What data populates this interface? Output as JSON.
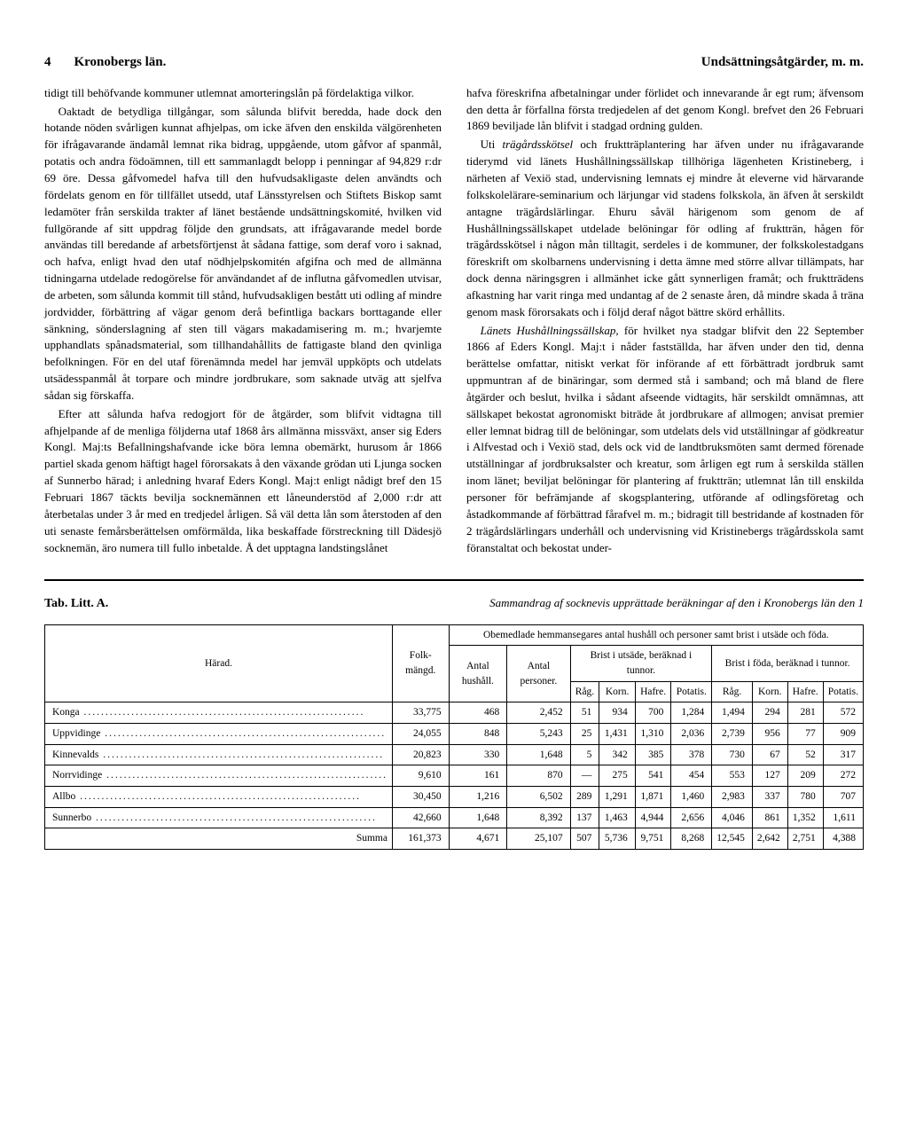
{
  "header": {
    "page_number": "4",
    "left_title": "Kronobergs län.",
    "right_title": "Undsättningsåtgärder, m. m."
  },
  "body": {
    "left_column": {
      "p1": "tidigt till behöfvande kommuner utlemnat amorteringslån på fördelaktiga vilkor.",
      "p2": "Oaktadt de betydliga tillgångar, som sålunda blifvit beredda, hade dock den hotande nöden svårligen kunnat afhjelpas, om icke äfven den enskilda välgörenheten för ifrågavarande ändamål lemnat rika bidrag, uppgående, utom gåfvor af spanmål, potatis och andra födoämnen, till ett sammanlagdt belopp i penningar af 94,829 r:dr 69 öre. Dessa gåfvomedel hafva till den hufvudsakligaste delen användts och fördelats genom en för tillfället utsedd, utaf Länsstyrelsen och Stiftets Biskop samt ledamöter från serskilda trakter af länet bestående undsättningskomité, hvilken vid fullgörande af sitt uppdrag följde den grundsats, att ifrågavarande medel borde användas till beredande af arbetsförtjenst åt sådana fattige, som deraf voro i saknad, och hafva, enligt hvad den utaf nödhjelpskomitén afgifna och med de allmänna tidningarna utdelade redogörelse för användandet af de influtna gåfvomedlen utvisar, de arbeten, som sålunda kommit till stånd, hufvudsakligen bestått uti odling af mindre jordvidder, förbättring af vägar genom derå befintliga backars borttagande eller sänkning, sönderslagning af sten till vägars makadamisering m. m.; hvarjemte upphandlats spånadsmaterial, som tillhandahållits de fattigaste bland den qvinliga befolkningen. För en del utaf förenämnda medel har jemväl uppköpts och utdelats utsädesspanmål åt torpare och mindre jordbrukare, som saknade utväg att sjelfva sådan sig förskaffa.",
      "p3": "Efter att sålunda hafva redogjort för de åtgärder, som blifvit vidtagna till afhjelpande af de menliga följderna utaf 1868 års allmänna missväxt, anser sig Eders Kongl. Maj:ts Befallningshafvande icke böra lemna obemärkt, hurusom år 1866 partiel skada genom häftigt hagel förorsakats å den växande grödan uti Ljunga socken af Sunnerbo härad; i anledning hvaraf Eders Kongl. Maj:t enligt nådigt bref den 15 Februari 1867 täckts bevilja socknemännen ett låneunderstöd af 2,000 r:dr att återbetalas under 3 år med en tredjedel årligen. Så väl detta lån som återstoden af den uti senaste femårsberättelsen omförmälda, lika beskaffade förstreckning till Dädesjö socknemän, äro numera till fullo inbetalde. Å det upptagna landstingslånet"
    },
    "right_column": {
      "p1": "hafva föreskrifna afbetalningar under förlidet och innevarande år egt rum; äfvensom den detta år förfallna första tredjedelen af det genom Kongl. brefvet den 26 Februari 1869 beviljade lån blifvit i stadgad ordning gulden.",
      "p2_lead": "Uti ",
      "p2_em": "trägårdsskötsel",
      "p2_rest": " och fruktträplantering har äfven under nu ifrågavarande tiderymd vid länets Hushållningssällskap tillhöriga lägenheten Kristineberg, i närheten af Vexiö stad, undervisning lemnats ej mindre åt eleverne vid härvarande folkskolelärare-seminarium och lärjungar vid stadens folkskola, än äfven åt serskildt antagne trägårdslärlingar. Ehuru såväl härigenom som genom de af Hushållningssällskapet utdelade belöningar för odling af fruktträn, hågen för trägårdsskötsel i någon mån tilltagit, serdeles i de kommuner, der folkskolestadgans föreskrift om skolbarnens undervisning i detta ämne med större allvar tillämpats, har dock denna näringsgren i allmänhet icke gått synnerligen framåt; och fruktträdens afkastning har varit ringa med undantag af de 2 senaste åren, då mindre skada å träna genom mask förorsakats och i följd deraf något bättre skörd erhållits.",
      "p3_em": "Länets Hushållningssällskap,",
      "p3_rest": " för hvilket nya stadgar blifvit den 22 September 1866 af Eders Kongl. Maj:t i nåder fastställda, har äfven under den tid, denna berättelse omfattar, nitiskt verkat för införande af ett förbättradt jordbruk samt uppmuntran af de binäringar, som dermed stå i samband; och må bland de flere åtgärder och beslut, hvilka i sådant afseende vidtagits, här serskildt omnämnas, att sällskapet bekostat agronomiskt biträde åt jordbrukare af allmogen; anvisat premier eller lemnat bidrag till de belöningar, som utdelats dels vid utställningar af gödkreatur i Alfvestad och i Vexiö stad, dels ock vid de landtbruksmöten samt dermed förenade utställningar af jordbruksalster och kreatur, som årligen egt rum å serskilda ställen inom länet; beviljat belöningar för plantering af fruktträn; utlemnat lån till enskilda personer för befrämjande af skogsplantering, utförande af odlingsföretag och åstadkommande af förbättrad fårafvel m. m.; bidragit till bestridande af kostnaden för 2 trägårdslärlingars underhåll och undervisning vid Kristinebergs trägårdsskola samt föranstaltat och bekostat under-"
    }
  },
  "table": {
    "label": "Tab. Litt. A.",
    "caption": "Sammandrag af socknevis upprättade beräkningar af den i Kronobergs län den 1",
    "headers": {
      "harad": "Härad.",
      "folkmangd": "Folk-mängd.",
      "group": "Obemedlade hemmansegares antal hushåll och personer samt brist i utsäde och föda.",
      "antal_hushall": "Antal hushåll.",
      "antal_personer": "Antal personer.",
      "brist_utsade": "Brist i utsäde, beräknad i tunnor.",
      "brist_foda": "Brist i föda, beräknad i tunnor.",
      "rag": "Råg.",
      "korn": "Korn.",
      "hafre": "Hafre.",
      "potatis": "Potatis."
    },
    "rows": [
      {
        "name": "Konga",
        "folk": "33,775",
        "hush": "468",
        "pers": "2,452",
        "u_rag": "51",
        "u_korn": "934",
        "u_hafre": "700",
        "u_pot": "1,284",
        "f_rag": "1,494",
        "f_korn": "294",
        "f_hafre": "281",
        "f_pot": "572"
      },
      {
        "name": "Uppvidinge",
        "folk": "24,055",
        "hush": "848",
        "pers": "5,243",
        "u_rag": "25",
        "u_korn": "1,431",
        "u_hafre": "1,310",
        "u_pot": "2,036",
        "f_rag": "2,739",
        "f_korn": "956",
        "f_hafre": "77",
        "f_pot": "909"
      },
      {
        "name": "Kinnevalds",
        "folk": "20,823",
        "hush": "330",
        "pers": "1,648",
        "u_rag": "5",
        "u_korn": "342",
        "u_hafre": "385",
        "u_pot": "378",
        "f_rag": "730",
        "f_korn": "67",
        "f_hafre": "52",
        "f_pot": "317"
      },
      {
        "name": "Norrvidinge",
        "folk": "9,610",
        "hush": "161",
        "pers": "870",
        "u_rag": "—",
        "u_korn": "275",
        "u_hafre": "541",
        "u_pot": "454",
        "f_rag": "553",
        "f_korn": "127",
        "f_hafre": "209",
        "f_pot": "272"
      },
      {
        "name": "Allbo",
        "folk": "30,450",
        "hush": "1,216",
        "pers": "6,502",
        "u_rag": "289",
        "u_korn": "1,291",
        "u_hafre": "1,871",
        "u_pot": "1,460",
        "f_rag": "2,983",
        "f_korn": "337",
        "f_hafre": "780",
        "f_pot": "707"
      },
      {
        "name": "Sunnerbo",
        "folk": "42,660",
        "hush": "1,648",
        "pers": "8,392",
        "u_rag": "137",
        "u_korn": "1,463",
        "u_hafre": "4,944",
        "u_pot": "2,656",
        "f_rag": "4,046",
        "f_korn": "861",
        "f_hafre": "1,352",
        "f_pot": "1,611"
      }
    ],
    "sum": {
      "name": "Summa",
      "folk": "161,373",
      "hush": "4,671",
      "pers": "25,107",
      "u_rag": "507",
      "u_korn": "5,736",
      "u_hafre": "9,751",
      "u_pot": "8,268",
      "f_rag": "12,545",
      "f_korn": "2,642",
      "f_hafre": "2,751",
      "f_pot": "4,388"
    }
  }
}
